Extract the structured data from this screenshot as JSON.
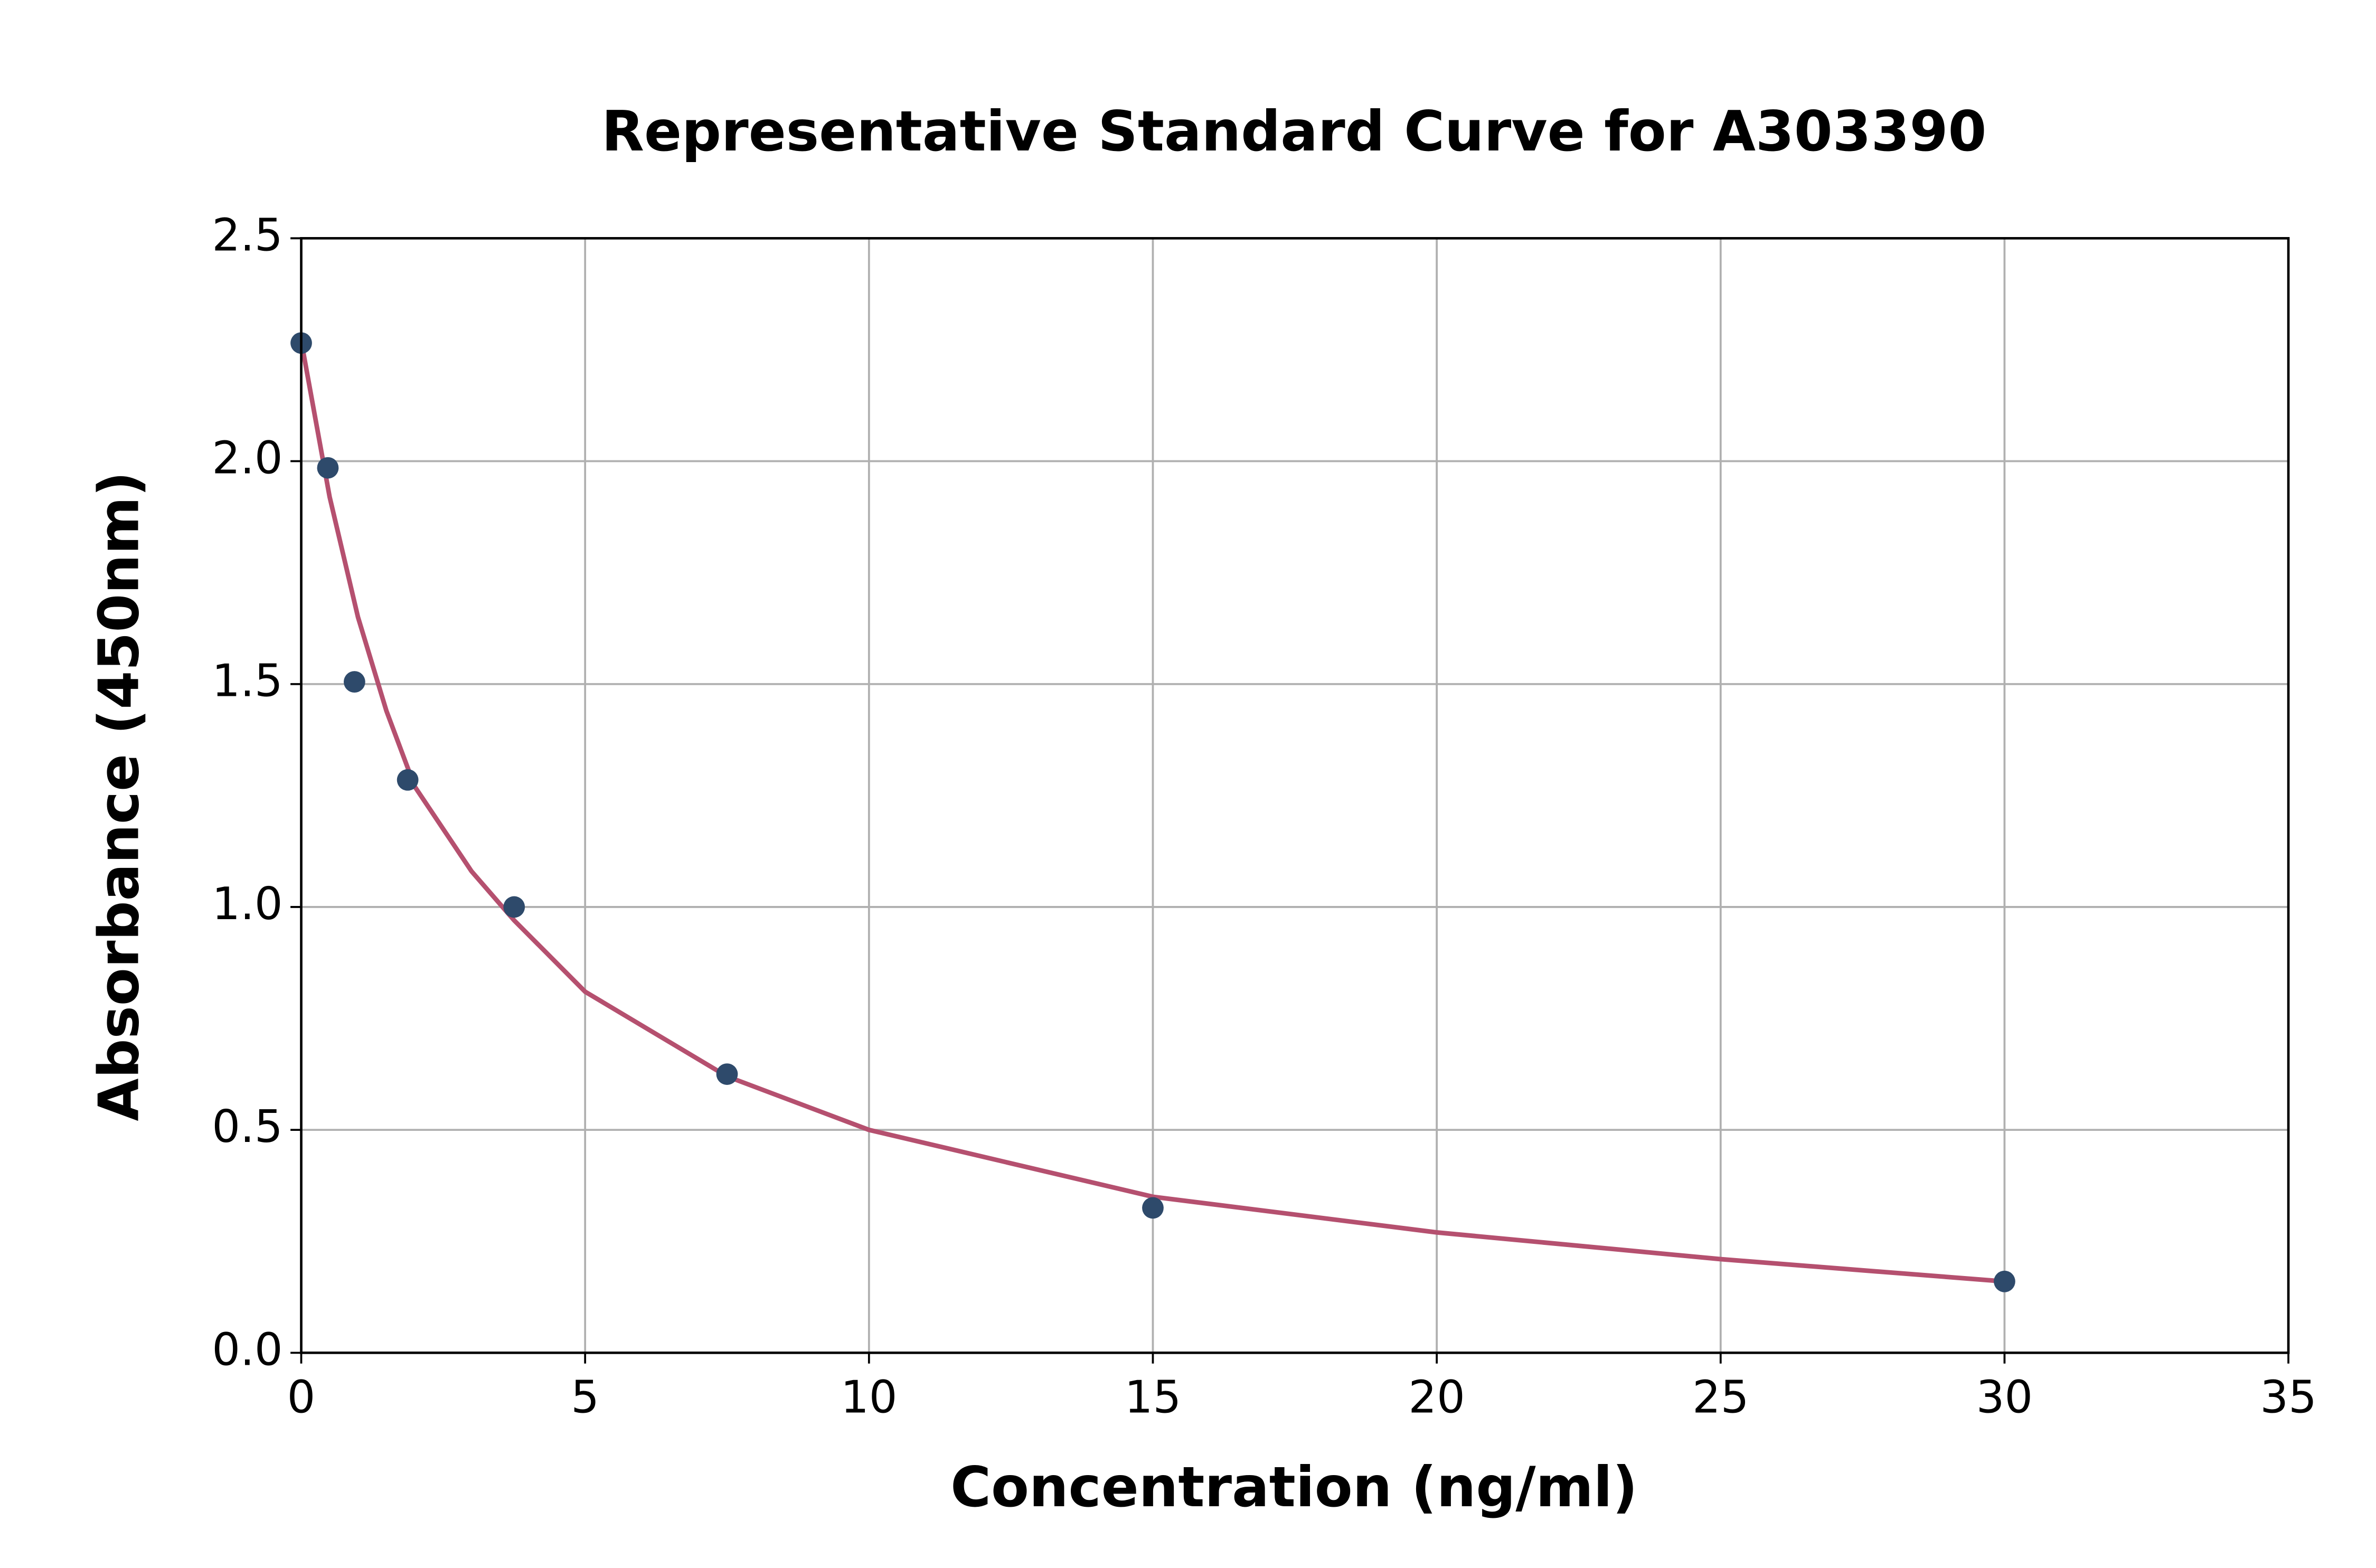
{
  "chart_data": {
    "type": "scatter",
    "title": "Representative Standard Curve for A303390",
    "x_label": "Concentration (ng/ml)",
    "y_label": "Absorbance (450nm)",
    "points": {
      "color": "#2e4a6b",
      "x": [
        0,
        0.469,
        0.938,
        1.875,
        3.75,
        7.5,
        15,
        30
      ],
      "y": [
        2.265,
        1.985,
        1.505,
        1.285,
        1.0,
        0.625,
        0.325,
        0.16
      ]
    },
    "curve": {
      "color": "#b5506f",
      "x": [
        0,
        0.5,
        1,
        1.5,
        2,
        3,
        3.75,
        5,
        7.5,
        10,
        15,
        20,
        25,
        30
      ],
      "y": [
        2.27,
        1.92,
        1.65,
        1.44,
        1.27,
        1.08,
        0.97,
        0.81,
        0.62,
        0.5,
        0.35,
        0.27,
        0.21,
        0.16
      ]
    },
    "xlim": [
      0,
      35
    ],
    "xticks": [
      0,
      5,
      10,
      15,
      20,
      25,
      30,
      35
    ],
    "ylim": [
      0,
      2.5
    ],
    "yticks": [
      {
        "value": 0,
        "label": "0.0"
      },
      0.5,
      {
        "value": 1,
        "label": "1.0"
      },
      1.5,
      {
        "value": 2,
        "label": "2.0"
      },
      2.5
    ],
    "grid": true
  }
}
